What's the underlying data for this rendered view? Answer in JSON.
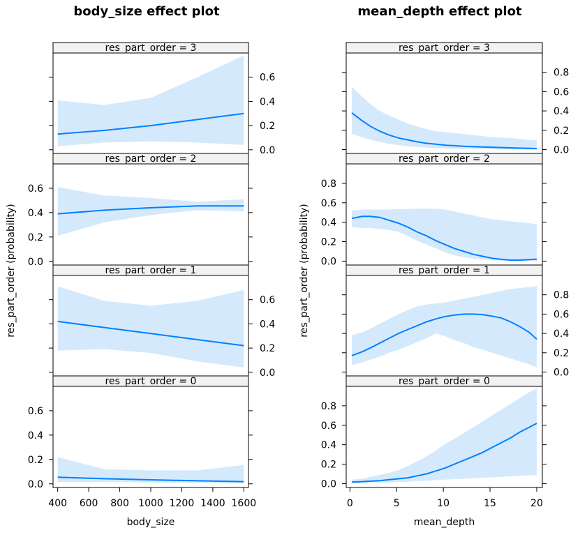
{
  "chart_data": [
    {
      "type": "line",
      "title": "body_size effect plot",
      "xlabel": "body_size",
      "ylabel": "res_part_order (probability)",
      "xlim": [
        370,
        1630
      ],
      "xticks": [
        400,
        600,
        800,
        1000,
        1200,
        1400,
        1600
      ],
      "x": [
        400,
        700,
        1000,
        1300,
        1600
      ],
      "panels": [
        {
          "strip": "res_part_order = 3",
          "ylim": [
            -0.03,
            0.8
          ],
          "yticks": [
            0.0,
            0.2,
            0.4,
            0.6
          ],
          "ytick_labels": [
            "0.0",
            "0.2",
            "0.4",
            "0.6"
          ],
          "ticks_side": "right",
          "fit": [
            0.13,
            0.16,
            0.2,
            0.25,
            0.3
          ],
          "lower": [
            0.03,
            0.06,
            0.07,
            0.06,
            0.04
          ],
          "upper": [
            0.41,
            0.37,
            0.43,
            0.6,
            0.78
          ]
        },
        {
          "strip": "res_part_order = 2",
          "ylim": [
            -0.03,
            0.8
          ],
          "yticks": [
            0.0,
            0.2,
            0.4,
            0.6
          ],
          "ytick_labels": [
            "0.0",
            "0.2",
            "0.4",
            "0.6"
          ],
          "ticks_side": "left",
          "fit": [
            0.39,
            0.42,
            0.44,
            0.455,
            0.455
          ],
          "lower": [
            0.21,
            0.32,
            0.38,
            0.42,
            0.41
          ],
          "upper": [
            0.61,
            0.54,
            0.52,
            0.49,
            0.51
          ]
        },
        {
          "strip": "res_part_order = 1",
          "ylim": [
            -0.03,
            0.8
          ],
          "yticks": [
            0.0,
            0.2,
            0.4,
            0.6
          ],
          "ytick_labels": [
            "0.0",
            "0.2",
            "0.4",
            "0.6"
          ],
          "ticks_side": "right",
          "fit": [
            0.42,
            0.37,
            0.32,
            0.27,
            0.22
          ],
          "lower": [
            0.18,
            0.19,
            0.16,
            0.09,
            0.04
          ],
          "upper": [
            0.71,
            0.59,
            0.55,
            0.59,
            0.68
          ]
        },
        {
          "strip": "res_part_order = 0",
          "ylim": [
            -0.03,
            0.8
          ],
          "yticks": [
            0.0,
            0.2,
            0.4,
            0.6
          ],
          "ytick_labels": [
            "0.0",
            "0.2",
            "0.4",
            "0.6"
          ],
          "ticks_side": "left",
          "fit": [
            0.055,
            0.042,
            0.033,
            0.025,
            0.018
          ],
          "lower": [
            0.015,
            0.015,
            0.012,
            0.008,
            0.004
          ],
          "upper": [
            0.22,
            0.12,
            0.11,
            0.11,
            0.155
          ]
        }
      ]
    },
    {
      "type": "line",
      "title": "mean_depth effect plot",
      "xlabel": "mean_depth",
      "ylabel": "res_part_order (probability)",
      "xlim": [
        -0.4,
        20.6
      ],
      "xticks": [
        0,
        5,
        10,
        15,
        20
      ],
      "x": [
        0.2,
        1.3,
        2.2,
        3.2,
        4.2,
        5.2,
        6.2,
        7.2,
        8.2,
        9.2,
        10.2,
        11.2,
        12.2,
        13.2,
        14.2,
        15.2,
        16.2,
        17.2,
        18.2,
        19.2,
        20
      ],
      "panels": [
        {
          "strip": "res_part_order = 3",
          "ylim": [
            -0.04,
            1.0
          ],
          "yticks": [
            0.0,
            0.2,
            0.4,
            0.6,
            0.8
          ],
          "ytick_labels": [
            "0.0",
            "0.2",
            "0.4",
            "0.6",
            "0.8"
          ],
          "ticks_side": "right",
          "fit": [
            0.38,
            0.3,
            0.24,
            0.19,
            0.15,
            0.12,
            0.1,
            0.08,
            0.065,
            0.055,
            0.045,
            0.04,
            0.034,
            0.03,
            0.027,
            0.024,
            0.021,
            0.018,
            0.015,
            0.012,
            0.01
          ],
          "lower": [
            0.16,
            0.13,
            0.1,
            0.08,
            0.06,
            0.045,
            0.035,
            0.027,
            0.02,
            0.015,
            0.011,
            0.008,
            0.006,
            0.004,
            0.003,
            0.002,
            0.0015,
            0.001,
            0.0008,
            0.0006,
            0.0005
          ],
          "upper": [
            0.65,
            0.55,
            0.47,
            0.4,
            0.35,
            0.31,
            0.27,
            0.24,
            0.21,
            0.19,
            0.18,
            0.17,
            0.16,
            0.15,
            0.14,
            0.13,
            0.125,
            0.12,
            0.11,
            0.1,
            0.1
          ]
        },
        {
          "strip": "res_part_order = 2",
          "ylim": [
            -0.04,
            1.0
          ],
          "yticks": [
            0.0,
            0.2,
            0.4,
            0.6,
            0.8
          ],
          "ytick_labels": [
            "0.0",
            "0.2",
            "0.4",
            "0.6",
            "0.8"
          ],
          "ticks_side": "left",
          "fit": [
            0.44,
            0.46,
            0.46,
            0.45,
            0.42,
            0.39,
            0.35,
            0.3,
            0.26,
            0.21,
            0.17,
            0.13,
            0.1,
            0.07,
            0.05,
            0.03,
            0.018,
            0.01,
            0.01,
            0.015,
            0.02
          ],
          "lower": [
            0.35,
            0.34,
            0.34,
            0.33,
            0.32,
            0.3,
            0.26,
            0.21,
            0.17,
            0.13,
            0.09,
            0.06,
            0.04,
            0.025,
            0.015,
            0.008,
            0.004,
            0.002,
            0.001,
            0.0008,
            0.0005
          ],
          "upper": [
            0.52,
            0.53,
            0.53,
            0.53,
            0.53,
            0.535,
            0.535,
            0.54,
            0.54,
            0.54,
            0.53,
            0.51,
            0.49,
            0.47,
            0.45,
            0.43,
            0.42,
            0.41,
            0.4,
            0.39,
            0.38
          ]
        },
        {
          "strip": "res_part_order = 1",
          "ylim": [
            -0.04,
            1.0
          ],
          "yticks": [
            0.0,
            0.2,
            0.4,
            0.6,
            0.8
          ],
          "ytick_labels": [
            "0.0",
            "0.2",
            "0.4",
            "0.6",
            "0.8"
          ],
          "ticks_side": "right",
          "fit": [
            0.17,
            0.21,
            0.25,
            0.3,
            0.35,
            0.4,
            0.44,
            0.48,
            0.52,
            0.55,
            0.575,
            0.59,
            0.6,
            0.6,
            0.595,
            0.58,
            0.56,
            0.52,
            0.47,
            0.41,
            0.34
          ],
          "lower": [
            0.07,
            0.1,
            0.13,
            0.16,
            0.2,
            0.23,
            0.27,
            0.31,
            0.35,
            0.4,
            0.37,
            0.33,
            0.3,
            0.26,
            0.23,
            0.2,
            0.17,
            0.14,
            0.11,
            0.08,
            0.05
          ],
          "upper": [
            0.38,
            0.41,
            0.45,
            0.5,
            0.55,
            0.6,
            0.64,
            0.68,
            0.7,
            0.71,
            0.72,
            0.74,
            0.76,
            0.78,
            0.8,
            0.82,
            0.84,
            0.86,
            0.87,
            0.88,
            0.89
          ]
        },
        {
          "strip": "res_part_order = 0",
          "ylim": [
            -0.04,
            1.0
          ],
          "yticks": [
            0.0,
            0.2,
            0.4,
            0.6,
            0.8
          ],
          "ytick_labels": [
            "0.0",
            "0.2",
            "0.4",
            "0.6",
            "0.8"
          ],
          "ticks_side": "left",
          "fit": [
            0.015,
            0.02,
            0.025,
            0.03,
            0.04,
            0.05,
            0.06,
            0.08,
            0.1,
            0.13,
            0.16,
            0.2,
            0.24,
            0.28,
            0.32,
            0.37,
            0.42,
            0.47,
            0.53,
            0.58,
            0.62
          ],
          "lower": [
            0.005,
            0.006,
            0.008,
            0.01,
            0.013,
            0.016,
            0.02,
            0.025,
            0.03,
            0.035,
            0.04,
            0.045,
            0.05,
            0.055,
            0.06,
            0.065,
            0.07,
            0.075,
            0.08,
            0.085,
            0.09
          ],
          "upper": [
            0.04,
            0.05,
            0.07,
            0.09,
            0.11,
            0.14,
            0.18,
            0.23,
            0.28,
            0.34,
            0.41,
            0.46,
            0.52,
            0.58,
            0.64,
            0.7,
            0.76,
            0.82,
            0.88,
            0.94,
            0.98
          ]
        }
      ]
    }
  ],
  "colors": {
    "line": "#0080ff",
    "band": "#d5e9fc",
    "strip": "#f2f2f2",
    "frame": "#000000"
  }
}
